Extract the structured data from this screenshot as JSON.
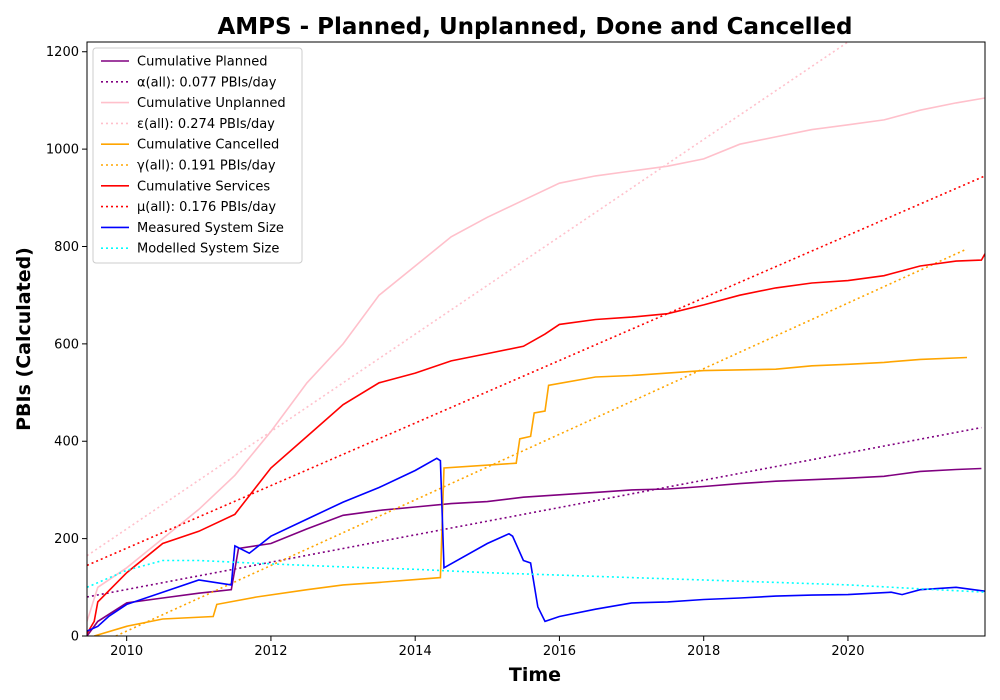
{
  "chart_data": {
    "type": "line",
    "title": "AMPS - Planned, Unplanned, Done  and Cancelled",
    "xlabel": "Time",
    "ylabel": "PBIs (Calculated)",
    "xlim": [
      2009.45,
      2021.9
    ],
    "ylim": [
      0,
      1220
    ],
    "xticks": [
      2010,
      2012,
      2014,
      2016,
      2018,
      2020
    ],
    "yticks": [
      0,
      200,
      400,
      600,
      800,
      1000,
      1200
    ],
    "legend_position": "upper left",
    "series": [
      {
        "name": "Cumulative Planned",
        "color": "#800080",
        "style": "solid",
        "x": [
          2009.45,
          2009.6,
          2010.0,
          2010.5,
          2011.0,
          2011.45,
          2011.55,
          2012.0,
          2012.5,
          2013.0,
          2013.5,
          2014.0,
          2014.5,
          2015.0,
          2015.5,
          2016.0,
          2016.5,
          2017.0,
          2017.5,
          2018.0,
          2018.5,
          2019.0,
          2019.5,
          2020.0,
          2020.5,
          2021.0,
          2021.5,
          2021.85
        ],
        "y": [
          0,
          30,
          68,
          78,
          88,
          95,
          180,
          190,
          220,
          248,
          258,
          265,
          272,
          276,
          285,
          290,
          295,
          300,
          302,
          307,
          313,
          318,
          321,
          324,
          328,
          338,
          342,
          344
        ]
      },
      {
        "name": "α(all): 0.077 PBIs/day",
        "color": "#800080",
        "style": "dotted",
        "x": [
          2009.45,
          2021.85
        ],
        "y": [
          80,
          428
        ]
      },
      {
        "name": "Cumulative Unplanned",
        "color": "#ffc0cb",
        "style": "solid",
        "x": [
          2009.45,
          2009.6,
          2010.0,
          2010.5,
          2011.0,
          2011.5,
          2012.0,
          2012.5,
          2013.0,
          2013.5,
          2014.0,
          2014.5,
          2015.0,
          2015.5,
          2016.0,
          2016.5,
          2017.0,
          2017.5,
          2018.0,
          2018.5,
          2019.0,
          2019.5,
          2020.0,
          2020.5,
          2021.0,
          2021.5,
          2021.9
        ],
        "y": [
          30,
          100,
          140,
          200,
          260,
          330,
          420,
          520,
          600,
          700,
          760,
          820,
          860,
          895,
          930,
          945,
          955,
          965,
          980,
          1010,
          1025,
          1040,
          1050,
          1060,
          1080,
          1095,
          1105
        ]
      },
      {
        "name": "ε(all): 0.274 PBIs/day",
        "color": "#ffc0cb",
        "style": "dotted",
        "x": [
          2009.45,
          2020.0
        ],
        "y": [
          165,
          1220
        ]
      },
      {
        "name": "Cumulative Cancelled",
        "color": "#ffa500",
        "style": "solid",
        "x": [
          2009.55,
          2010.0,
          2010.5,
          2011.2,
          2011.25,
          2011.8,
          2012.5,
          2013.0,
          2013.5,
          2014.35,
          2014.4,
          2015.4,
          2015.45,
          2015.6,
          2015.65,
          2015.8,
          2015.85,
          2016.5,
          2017.0,
          2018.0,
          2019.0,
          2019.5,
          2020.0,
          2020.5,
          2021.0,
          2021.65
        ],
        "y": [
          0,
          20,
          35,
          40,
          65,
          80,
          95,
          105,
          110,
          120,
          345,
          355,
          405,
          410,
          458,
          462,
          515,
          532,
          535,
          545,
          548,
          555,
          558,
          562,
          568,
          572
        ]
      },
      {
        "name": "γ(all): 0.191 PBIs/day",
        "color": "#ffa500",
        "style": "dotted",
        "x": [
          2009.85,
          2021.65
        ],
        "y": [
          0,
          795
        ]
      },
      {
        "name": "Cumulative Services",
        "color": "#ff0000",
        "style": "solid",
        "x": [
          2009.45,
          2009.55,
          2009.6,
          2010.0,
          2010.5,
          2011.0,
          2011.5,
          2012.0,
          2012.5,
          2013.0,
          2013.5,
          2014.0,
          2014.5,
          2015.0,
          2015.5,
          2015.8,
          2016.0,
          2016.5,
          2017.0,
          2017.5,
          2018.0,
          2018.5,
          2019.0,
          2019.5,
          2020.0,
          2020.5,
          2021.0,
          2021.5,
          2021.85,
          2021.9
        ],
        "y": [
          5,
          30,
          70,
          130,
          190,
          215,
          250,
          345,
          410,
          475,
          520,
          540,
          565,
          580,
          595,
          620,
          640,
          650,
          655,
          662,
          680,
          700,
          715,
          725,
          730,
          740,
          760,
          770,
          772,
          785
        ]
      },
      {
        "name": "μ(all): 0.176 PBIs/day",
        "color": "#ff0000",
        "style": "dotted",
        "x": [
          2009.45,
          2021.9
        ],
        "y": [
          145,
          945
        ]
      },
      {
        "name": "Measured System Size",
        "color": "#0000ff",
        "style": "solid",
        "x": [
          2009.45,
          2009.6,
          2009.75,
          2010.0,
          2010.5,
          2011.0,
          2011.45,
          2011.5,
          2011.7,
          2012.0,
          2012.5,
          2013.0,
          2013.5,
          2014.0,
          2014.3,
          2014.35,
          2014.4,
          2015.0,
          2015.3,
          2015.35,
          2015.5,
          2015.6,
          2015.7,
          2015.8,
          2016.0,
          2016.5,
          2017.0,
          2017.5,
          2018.0,
          2018.5,
          2019.0,
          2019.5,
          2020.0,
          2020.6,
          2020.75,
          2021.0,
          2021.5,
          2021.9
        ],
        "y": [
          10,
          20,
          40,
          65,
          90,
          115,
          105,
          185,
          170,
          205,
          240,
          275,
          305,
          340,
          365,
          360,
          140,
          190,
          210,
          205,
          155,
          150,
          60,
          30,
          40,
          55,
          68,
          70,
          75,
          78,
          82,
          84,
          85,
          90,
          85,
          95,
          100,
          92
        ]
      },
      {
        "name": "Modelled System Size",
        "color": "#00ffff",
        "style": "dotted",
        "x": [
          2009.45,
          2010.0,
          2010.5,
          2011.0,
          2012.0,
          2013.0,
          2014.0,
          2015.0,
          2016.0,
          2017.0,
          2018.0,
          2019.0,
          2020.0,
          2021.0,
          2021.9
        ],
        "y": [
          100,
          135,
          155,
          155,
          148,
          142,
          137,
          130,
          125,
          120,
          115,
          110,
          105,
          97,
          90
        ]
      }
    ]
  }
}
